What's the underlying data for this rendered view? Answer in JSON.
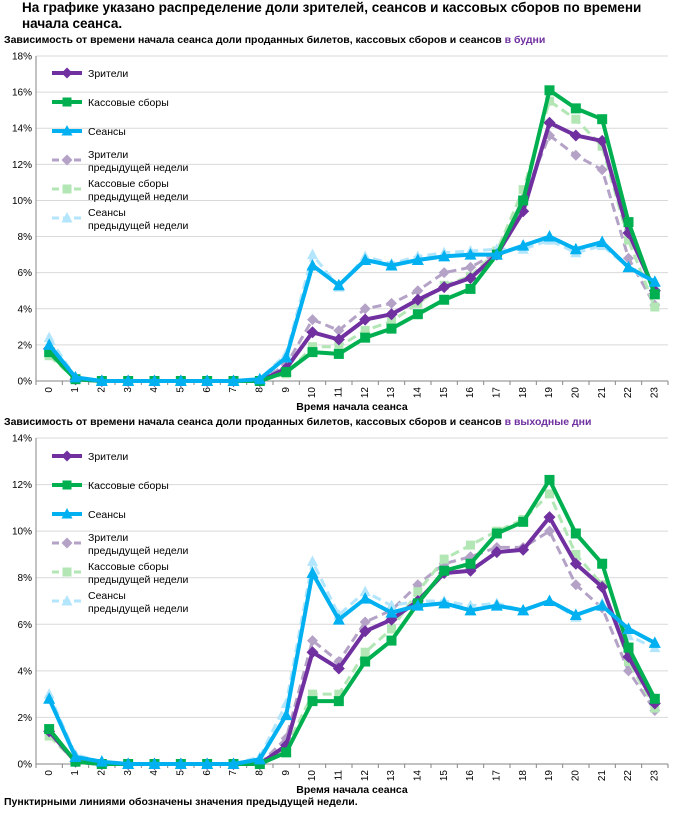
{
  "header": {
    "title": "На графике указано распределение доли зрителей, сеансов и кассовых сборов по времени начала сеанса."
  },
  "footnote": "Пунктирными линиями обозначены значения предыдущей недели.",
  "legend": [
    "Зрители",
    "Кассовые сборы",
    "Сеансы",
    "Зрители\nпредыдущей недели",
    "Кассовые сборы\nпредыдущей недели",
    "Сеансы\nпредыдущей недели"
  ],
  "colors": {
    "viewers": "#7030a0",
    "box": "#00b050",
    "sessions": "#00b0f0",
    "viewers_prev": "#b4a2c7",
    "box_prev": "#b3e6b5",
    "sessions_prev": "#b3e5fc"
  },
  "chart_data": [
    {
      "type": "line",
      "title_main": "Зависимость от времени начала сеанса доли проданных билетов, кассовых сборов и сеансов",
      "title_highlight": "в будни",
      "xlabel": "Время начала сеанса",
      "ylabel": "",
      "ylim": [
        0,
        18
      ],
      "yticks": [
        "0%",
        "2%",
        "4%",
        "6%",
        "8%",
        "10%",
        "12%",
        "14%",
        "16%",
        "18%"
      ],
      "categories": [
        "0",
        "1",
        "2",
        "3",
        "4",
        "5",
        "6",
        "7",
        "8",
        "9",
        "10",
        "11",
        "12",
        "13",
        "14",
        "15",
        "16",
        "17",
        "18",
        "19",
        "20",
        "21",
        "22",
        "23"
      ],
      "series": [
        {
          "name": "Зрители",
          "style": "solid",
          "marker": "diamond",
          "values": [
            1.8,
            0.1,
            0,
            0,
            0,
            0,
            0,
            0,
            0,
            0.7,
            2.7,
            2.3,
            3.4,
            3.7,
            4.5,
            5.2,
            5.7,
            7.0,
            9.4,
            14.3,
            13.6,
            13.3,
            8.2,
            5.0
          ]
        },
        {
          "name": "Кассовые сборы",
          "style": "solid",
          "marker": "square",
          "values": [
            1.6,
            0.1,
            0,
            0,
            0,
            0,
            0,
            0,
            0,
            0.5,
            1.6,
            1.5,
            2.4,
            2.9,
            3.7,
            4.5,
            5.1,
            7.0,
            10.0,
            16.1,
            15.1,
            14.5,
            8.8,
            4.8
          ]
        },
        {
          "name": "Сеансы",
          "style": "solid",
          "marker": "triangle",
          "values": [
            2.0,
            0.2,
            0,
            0,
            0,
            0,
            0,
            0,
            0.1,
            1.3,
            6.4,
            5.3,
            6.7,
            6.4,
            6.7,
            6.9,
            7.0,
            7.0,
            7.5,
            8.0,
            7.3,
            7.7,
            6.3,
            5.5
          ]
        },
        {
          "name": "Зрители предыдущей недели",
          "style": "dashed",
          "marker": "diamond",
          "values": [
            1.8,
            0.1,
            0,
            0,
            0,
            0,
            0,
            0,
            0,
            0.9,
            3.4,
            2.8,
            4.0,
            4.3,
            5.0,
            6.0,
            6.3,
            7.1,
            10.1,
            13.6,
            12.5,
            11.7,
            6.8,
            4.2
          ]
        },
        {
          "name": "Кассовые сборы предыдущей недели",
          "style": "dashed",
          "marker": "square",
          "values": [
            1.4,
            0.1,
            0,
            0,
            0,
            0,
            0,
            0,
            0,
            0.4,
            1.9,
            1.9,
            2.8,
            3.3,
            4.3,
            5.3,
            5.8,
            7.2,
            10.6,
            15.5,
            14.5,
            13.0,
            7.8,
            4.1
          ]
        },
        {
          "name": "Сеансы предыдущей недели",
          "style": "dashed",
          "marker": "triangle",
          "values": [
            2.4,
            0.2,
            0,
            0,
            0,
            0,
            0,
            0,
            0.1,
            1.5,
            7.0,
            5.2,
            6.9,
            6.5,
            6.9,
            7.1,
            7.2,
            7.3,
            7.3,
            7.8,
            7.1,
            7.5,
            6.3,
            5.3
          ]
        }
      ]
    },
    {
      "type": "line",
      "title_main": "Зависимость от времени начала сеанса доли проданных билетов, кассовых сборов и сеансов",
      "title_highlight": "в выходные дни",
      "xlabel": "Время начала сеанса",
      "ylabel": "",
      "ylim": [
        0,
        14
      ],
      "yticks": [
        "0%",
        "2%",
        "4%",
        "6%",
        "8%",
        "10%",
        "12%",
        "14%"
      ],
      "categories": [
        "0",
        "1",
        "2",
        "3",
        "4",
        "5",
        "6",
        "7",
        "8",
        "9",
        "10",
        "11",
        "12",
        "13",
        "14",
        "15",
        "16",
        "17",
        "18",
        "19",
        "20",
        "21",
        "22",
        "23"
      ],
      "series": [
        {
          "name": "Зрители",
          "style": "solid",
          "marker": "diamond",
          "values": [
            1.4,
            0.1,
            0,
            0,
            0,
            0,
            0,
            0,
            0,
            0.8,
            4.8,
            4.1,
            5.7,
            6.2,
            7.0,
            8.2,
            8.3,
            9.1,
            9.2,
            10.6,
            8.6,
            7.6,
            4.6,
            2.6
          ]
        },
        {
          "name": "Кассовые сборы",
          "style": "solid",
          "marker": "square",
          "values": [
            1.5,
            0.1,
            0,
            0,
            0,
            0,
            0,
            0,
            0,
            0.5,
            2.7,
            2.7,
            4.4,
            5.3,
            6.9,
            8.3,
            8.6,
            9.9,
            10.4,
            12.2,
            9.9,
            8.6,
            5.0,
            2.8
          ]
        },
        {
          "name": "Сеансы",
          "style": "solid",
          "marker": "triangle",
          "values": [
            2.8,
            0.3,
            0.1,
            0,
            0,
            0,
            0,
            0,
            0.2,
            2.1,
            8.2,
            6.2,
            7.1,
            6.5,
            6.8,
            6.9,
            6.6,
            6.8,
            6.6,
            7.0,
            6.4,
            6.8,
            5.8,
            5.2
          ]
        },
        {
          "name": "Зрители предыдущей недели",
          "style": "dashed",
          "marker": "diamond",
          "values": [
            1.4,
            0.1,
            0,
            0,
            0,
            0,
            0,
            0,
            0,
            1.1,
            5.3,
            4.4,
            6.1,
            6.6,
            7.7,
            8.6,
            8.9,
            9.3,
            9.3,
            10.0,
            7.7,
            6.7,
            4.0,
            2.3
          ]
        },
        {
          "name": "Кассовые сборы предыдущей недели",
          "style": "dashed",
          "marker": "square",
          "values": [
            1.2,
            0.1,
            0,
            0,
            0,
            0,
            0,
            0,
            0,
            0.7,
            3.0,
            3.0,
            4.8,
            5.8,
            7.4,
            8.8,
            9.4,
            10.0,
            10.5,
            11.6,
            9.0,
            7.7,
            4.4,
            2.4
          ]
        },
        {
          "name": "Сеансы предыдущей недели",
          "style": "dashed",
          "marker": "triangle",
          "values": [
            3.0,
            0.4,
            0.1,
            0,
            0,
            0,
            0,
            0,
            0.3,
            2.6,
            8.7,
            6.4,
            7.4,
            6.8,
            7.0,
            7.0,
            6.8,
            6.9,
            6.6,
            7.0,
            6.3,
            6.9,
            5.5,
            5.0
          ]
        }
      ]
    }
  ]
}
